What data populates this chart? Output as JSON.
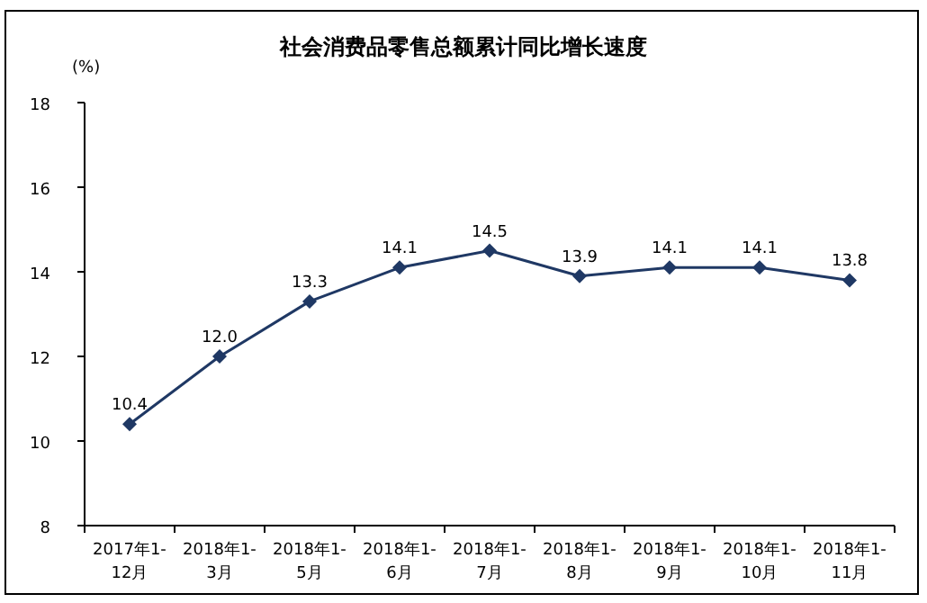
{
  "chart_data": {
    "type": "line",
    "title": "社会消费品零售总额累计同比增长速度",
    "ylabel": "(%)",
    "categories": [
      "2017年1-12月",
      "2018年1-3月",
      "2018年1-5月",
      "2018年1-6月",
      "2018年1-7月",
      "2018年1-8月",
      "2018年1-9月",
      "2018年1-10月",
      "2018年1-11月"
    ],
    "series": [
      {
        "color": "#1f3864",
        "values": [
          10.4,
          12.0,
          13.3,
          14.1,
          14.5,
          13.9,
          14.1,
          14.1,
          13.8
        ],
        "value_labels": [
          "10.4",
          "12.0",
          "13.3",
          "14.1",
          "14.5",
          "13.9",
          "14.1",
          "14.1",
          "13.8"
        ]
      }
    ],
    "ylim": [
      8,
      18
    ],
    "yticks": [
      8,
      10,
      12,
      14,
      16,
      18
    ],
    "marker": "diamond",
    "grid": false
  }
}
